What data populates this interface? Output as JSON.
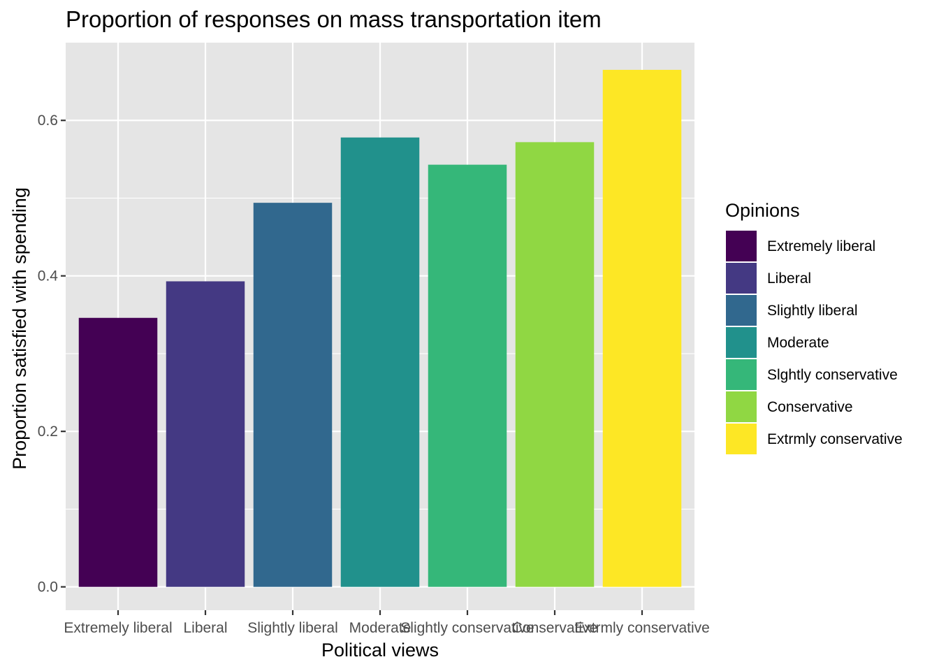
{
  "chart_data": {
    "type": "bar",
    "title": "Proportion of responses on mass transportation item",
    "xlabel": "Political views",
    "ylabel": "Proportion satisfied with spending",
    "categories": [
      "Extremely liberal",
      "Liberal",
      "Slightly liberal",
      "Moderate",
      "Slightly conservative",
      "Conservative",
      "Extrmly conservative"
    ],
    "values": [
      0.346,
      0.393,
      0.494,
      0.578,
      0.543,
      0.572,
      0.665
    ],
    "colors": [
      "#440154",
      "#443983",
      "#31688e",
      "#21918c",
      "#35b779",
      "#90d743",
      "#fde725"
    ],
    "ylim": [
      -0.03,
      0.7
    ],
    "yticks": [
      0.0,
      0.2,
      0.4,
      0.6
    ],
    "ytick_labels": [
      "0.0",
      "0.2",
      "0.4",
      "0.6"
    ],
    "grid": true,
    "panel_background": "#e5e5e5",
    "grid_color": "#ffffff",
    "legend": {
      "title": "Opinions",
      "position": "right",
      "labels": [
        "Extremely liberal",
        "Liberal",
        "Slightly liberal",
        "Moderate",
        "Slghtly conservative",
        "Conservative",
        "Extrmly conservative"
      ]
    }
  }
}
